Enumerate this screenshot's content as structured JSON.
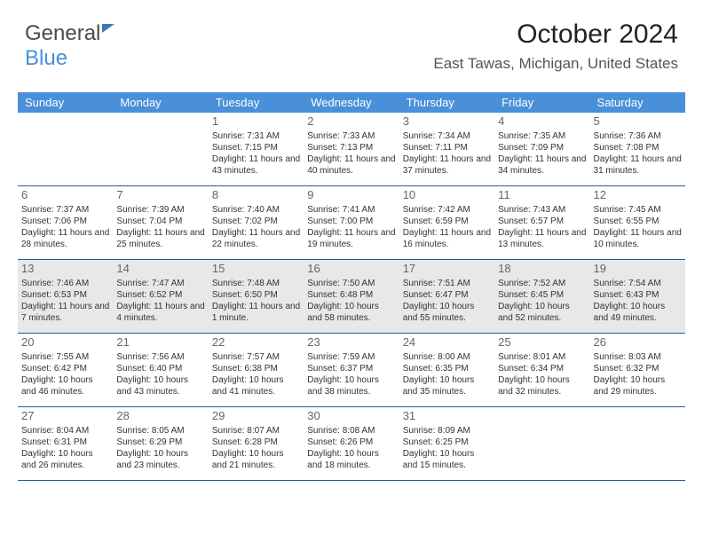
{
  "logo": {
    "part1": "General",
    "part2": "Blue"
  },
  "title": "October 2024",
  "location": "East Tawas, Michigan, United States",
  "colors": {
    "header_bg": "#4a90d9",
    "header_text": "#ffffff",
    "week_border": "#2e5a8c",
    "shade_bg": "#e8e8e8",
    "page_bg": "#ffffff",
    "body_text": "#333333"
  },
  "typography": {
    "title_fontsize": 30,
    "location_fontsize": 17,
    "dayheader_fontsize": 13,
    "daynum_fontsize": 13,
    "cell_fontsize": 10
  },
  "day_headers": [
    "Sunday",
    "Monday",
    "Tuesday",
    "Wednesday",
    "Thursday",
    "Friday",
    "Saturday"
  ],
  "weeks": [
    {
      "shaded": false,
      "cells": [
        null,
        null,
        {
          "num": "1",
          "sunrise": "7:31 AM",
          "sunset": "7:15 PM",
          "daylight": "11 hours and 43 minutes."
        },
        {
          "num": "2",
          "sunrise": "7:33 AM",
          "sunset": "7:13 PM",
          "daylight": "11 hours and 40 minutes."
        },
        {
          "num": "3",
          "sunrise": "7:34 AM",
          "sunset": "7:11 PM",
          "daylight": "11 hours and 37 minutes."
        },
        {
          "num": "4",
          "sunrise": "7:35 AM",
          "sunset": "7:09 PM",
          "daylight": "11 hours and 34 minutes."
        },
        {
          "num": "5",
          "sunrise": "7:36 AM",
          "sunset": "7:08 PM",
          "daylight": "11 hours and 31 minutes."
        }
      ]
    },
    {
      "shaded": false,
      "cells": [
        {
          "num": "6",
          "sunrise": "7:37 AM",
          "sunset": "7:06 PM",
          "daylight": "11 hours and 28 minutes."
        },
        {
          "num": "7",
          "sunrise": "7:39 AM",
          "sunset": "7:04 PM",
          "daylight": "11 hours and 25 minutes."
        },
        {
          "num": "8",
          "sunrise": "7:40 AM",
          "sunset": "7:02 PM",
          "daylight": "11 hours and 22 minutes."
        },
        {
          "num": "9",
          "sunrise": "7:41 AM",
          "sunset": "7:00 PM",
          "daylight": "11 hours and 19 minutes."
        },
        {
          "num": "10",
          "sunrise": "7:42 AM",
          "sunset": "6:59 PM",
          "daylight": "11 hours and 16 minutes."
        },
        {
          "num": "11",
          "sunrise": "7:43 AM",
          "sunset": "6:57 PM",
          "daylight": "11 hours and 13 minutes."
        },
        {
          "num": "12",
          "sunrise": "7:45 AM",
          "sunset": "6:55 PM",
          "daylight": "11 hours and 10 minutes."
        }
      ]
    },
    {
      "shaded": true,
      "cells": [
        {
          "num": "13",
          "sunrise": "7:46 AM",
          "sunset": "6:53 PM",
          "daylight": "11 hours and 7 minutes."
        },
        {
          "num": "14",
          "sunrise": "7:47 AM",
          "sunset": "6:52 PM",
          "daylight": "11 hours and 4 minutes."
        },
        {
          "num": "15",
          "sunrise": "7:48 AM",
          "sunset": "6:50 PM",
          "daylight": "11 hours and 1 minute."
        },
        {
          "num": "16",
          "sunrise": "7:50 AM",
          "sunset": "6:48 PM",
          "daylight": "10 hours and 58 minutes."
        },
        {
          "num": "17",
          "sunrise": "7:51 AM",
          "sunset": "6:47 PM",
          "daylight": "10 hours and 55 minutes."
        },
        {
          "num": "18",
          "sunrise": "7:52 AM",
          "sunset": "6:45 PM",
          "daylight": "10 hours and 52 minutes."
        },
        {
          "num": "19",
          "sunrise": "7:54 AM",
          "sunset": "6:43 PM",
          "daylight": "10 hours and 49 minutes."
        }
      ]
    },
    {
      "shaded": false,
      "cells": [
        {
          "num": "20",
          "sunrise": "7:55 AM",
          "sunset": "6:42 PM",
          "daylight": "10 hours and 46 minutes."
        },
        {
          "num": "21",
          "sunrise": "7:56 AM",
          "sunset": "6:40 PM",
          "daylight": "10 hours and 43 minutes."
        },
        {
          "num": "22",
          "sunrise": "7:57 AM",
          "sunset": "6:38 PM",
          "daylight": "10 hours and 41 minutes."
        },
        {
          "num": "23",
          "sunrise": "7:59 AM",
          "sunset": "6:37 PM",
          "daylight": "10 hours and 38 minutes."
        },
        {
          "num": "24",
          "sunrise": "8:00 AM",
          "sunset": "6:35 PM",
          "daylight": "10 hours and 35 minutes."
        },
        {
          "num": "25",
          "sunrise": "8:01 AM",
          "sunset": "6:34 PM",
          "daylight": "10 hours and 32 minutes."
        },
        {
          "num": "26",
          "sunrise": "8:03 AM",
          "sunset": "6:32 PM",
          "daylight": "10 hours and 29 minutes."
        }
      ]
    },
    {
      "shaded": false,
      "cells": [
        {
          "num": "27",
          "sunrise": "8:04 AM",
          "sunset": "6:31 PM",
          "daylight": "10 hours and 26 minutes."
        },
        {
          "num": "28",
          "sunrise": "8:05 AM",
          "sunset": "6:29 PM",
          "daylight": "10 hours and 23 minutes."
        },
        {
          "num": "29",
          "sunrise": "8:07 AM",
          "sunset": "6:28 PM",
          "daylight": "10 hours and 21 minutes."
        },
        {
          "num": "30",
          "sunrise": "8:08 AM",
          "sunset": "6:26 PM",
          "daylight": "10 hours and 18 minutes."
        },
        {
          "num": "31",
          "sunrise": "8:09 AM",
          "sunset": "6:25 PM",
          "daylight": "10 hours and 15 minutes."
        },
        null,
        null
      ]
    }
  ]
}
